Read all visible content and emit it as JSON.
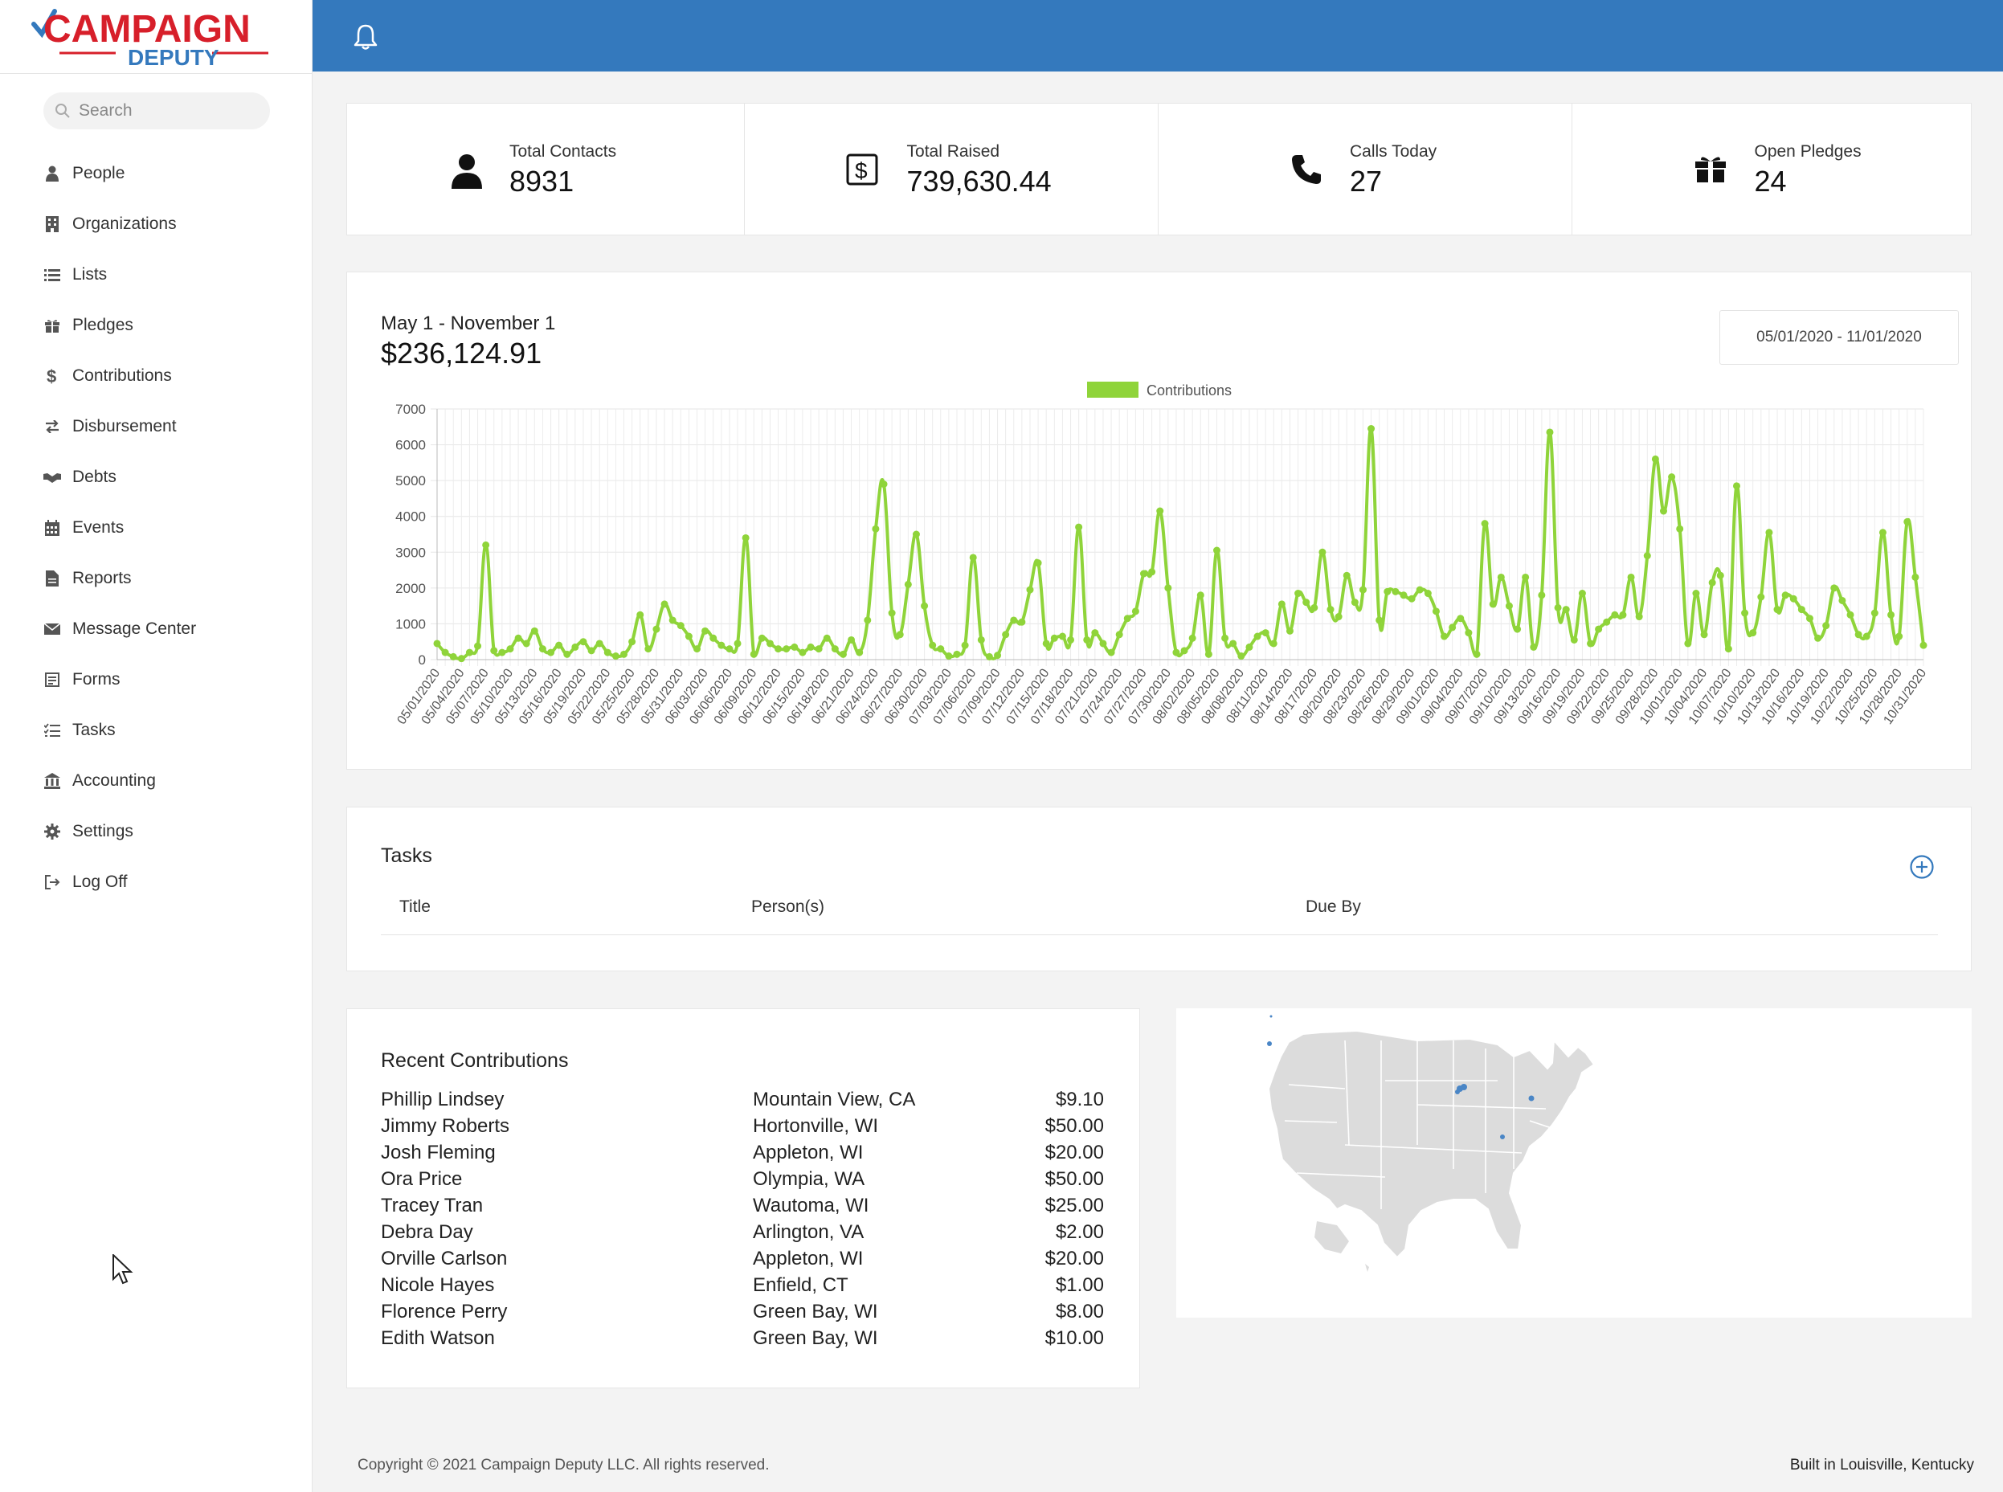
{
  "app": {
    "logo_top": "CAMPAIGN",
    "logo_bottom": "DEPUTY",
    "brand_red": "#d71f2a",
    "brand_blue": "#3479bd"
  },
  "search": {
    "placeholder": "Search"
  },
  "sidebar": {
    "items": [
      {
        "label": "People",
        "icon": "person-icon"
      },
      {
        "label": "Organizations",
        "icon": "building-icon"
      },
      {
        "label": "Lists",
        "icon": "list-icon"
      },
      {
        "label": "Pledges",
        "icon": "gift-icon"
      },
      {
        "label": "Contributions",
        "icon": "dollar-icon"
      },
      {
        "label": "Disbursement",
        "icon": "exchange-icon"
      },
      {
        "label": "Debts",
        "icon": "handshake-icon"
      },
      {
        "label": "Events",
        "icon": "calendar-icon"
      },
      {
        "label": "Reports",
        "icon": "file-icon"
      },
      {
        "label": "Message Center",
        "icon": "envelope-icon"
      },
      {
        "label": "Forms",
        "icon": "form-icon"
      },
      {
        "label": "Tasks",
        "icon": "tasks-icon"
      },
      {
        "label": "Accounting",
        "icon": "bank-icon"
      },
      {
        "label": "Settings",
        "icon": "gear-icon"
      },
      {
        "label": "Log Off",
        "icon": "sign-out-icon"
      }
    ]
  },
  "stats": [
    {
      "label": "Total Contacts",
      "value": "8931",
      "icon": "user-icon"
    },
    {
      "label": "Total Raised",
      "value": "739,630.44",
      "icon": "dollar-box-icon"
    },
    {
      "label": "Calls Today",
      "value": "27",
      "icon": "phone-icon"
    },
    {
      "label": "Open Pledges",
      "value": "24",
      "icon": "gift-icon"
    }
  ],
  "chart_header": {
    "period": "May 1 - November 1",
    "total": "$236,124.91",
    "range": "05/01/2020 - 11/01/2020"
  },
  "chart_data": {
    "type": "line",
    "title": "",
    "xlabel": "",
    "ylabel": "",
    "color": "#8fd43a",
    "ylim": [
      0,
      7000
    ],
    "yticks": [
      0,
      1000,
      2000,
      3000,
      4000,
      5000,
      6000,
      7000
    ],
    "grid": true,
    "legend_position": "top-center",
    "series": [
      {
        "name": "Contributions",
        "x_start": "05/01/2020",
        "values": [
          450,
          200,
          80,
          30,
          200,
          380,
          3200,
          250,
          200,
          300,
          600,
          450,
          800,
          300,
          200,
          400,
          150,
          350,
          500,
          250,
          450,
          200,
          100,
          150,
          500,
          1250,
          300,
          850,
          1550,
          1100,
          950,
          650,
          300,
          800,
          600,
          400,
          300,
          450,
          3400,
          150,
          600,
          450,
          300,
          300,
          350,
          200,
          350,
          300,
          600,
          300,
          150,
          550,
          200,
          1100,
          3650,
          4900,
          1300,
          700,
          2100,
          3500,
          1500,
          400,
          300,
          100,
          150,
          400,
          2850,
          550,
          80,
          120,
          700,
          1100,
          1050,
          1950,
          2700,
          450,
          600,
          650,
          550,
          3700,
          550,
          750,
          450,
          200,
          700,
          1150,
          1350,
          2400,
          2450,
          4150,
          2000,
          200,
          250,
          600,
          1800,
          150,
          3050,
          600,
          450,
          100,
          350,
          650,
          750,
          450,
          1550,
          800,
          1850,
          1600,
          1450,
          3000,
          1400,
          1200,
          2350,
          1600,
          1950,
          6450,
          1100,
          1900,
          1900,
          1800,
          1700,
          1950,
          1850,
          1350,
          650,
          900,
          1150,
          750,
          150,
          3800,
          1550,
          2300,
          1500,
          850,
          2300,
          350,
          1800,
          6350,
          1450,
          1400,
          550,
          1850,
          450,
          850,
          1050,
          1250,
          1250,
          2300,
          1200,
          2900,
          5600,
          4150,
          5100,
          3650,
          450,
          1850,
          700,
          2150,
          2350,
          300,
          4850,
          1300,
          750,
          1750,
          3550,
          1400,
          1800,
          1700,
          1400,
          1150,
          600,
          950,
          2000,
          1650,
          1250,
          700,
          650,
          1300,
          3550,
          1250,
          650,
          3850,
          2300,
          400
        ]
      }
    ],
    "x_tick_labels": [
      "05/01/2020",
      "05/04/2020",
      "05/07/2020",
      "05/10/2020",
      "05/13/2020",
      "05/16/2020",
      "05/19/2020",
      "05/22/2020",
      "05/25/2020",
      "05/28/2020",
      "05/31/2020",
      "06/03/2020",
      "06/06/2020",
      "06/09/2020",
      "06/12/2020",
      "06/15/2020",
      "06/18/2020",
      "06/21/2020",
      "06/24/2020",
      "06/27/2020",
      "06/30/2020",
      "07/03/2020",
      "07/06/2020",
      "07/09/2020",
      "07/12/2020",
      "07/15/2020",
      "07/18/2020",
      "07/21/2020",
      "07/24/2020",
      "07/27/2020",
      "07/30/2020",
      "08/02/2020",
      "08/05/2020",
      "08/08/2020",
      "08/11/2020",
      "08/14/2020",
      "08/17/2020",
      "08/20/2020",
      "08/23/2020",
      "08/26/2020",
      "08/29/2020",
      "09/01/2020",
      "09/04/2020",
      "09/07/2020",
      "09/10/2020",
      "09/13/2020",
      "09/16/2020",
      "09/19/2020",
      "09/22/2020",
      "09/25/2020",
      "09/28/2020",
      "10/01/2020",
      "10/04/2020",
      "10/07/2020",
      "10/10/2020",
      "10/13/2020",
      "10/16/2020",
      "10/19/2020",
      "10/22/2020",
      "10/25/2020",
      "10/28/2020",
      "10/31/2020"
    ]
  },
  "tasks": {
    "title": "Tasks",
    "columns": [
      "Title",
      "Person(s)",
      "Due By"
    ]
  },
  "recent": {
    "title": "Recent Contributions",
    "rows": [
      {
        "name": "Phillip Lindsey",
        "location": "Mountain View, CA",
        "amount": "$9.10"
      },
      {
        "name": "Jimmy Roberts",
        "location": "Hortonville, WI",
        "amount": "$50.00"
      },
      {
        "name": "Josh Fleming",
        "location": "Appleton, WI",
        "amount": "$20.00"
      },
      {
        "name": "Ora Price",
        "location": "Olympia, WA",
        "amount": "$50.00"
      },
      {
        "name": "Tracey Tran",
        "location": "Wautoma, WI",
        "amount": "$25.00"
      },
      {
        "name": "Debra Day",
        "location": "Arlington, VA",
        "amount": "$2.00"
      },
      {
        "name": "Orville Carlson",
        "location": "Appleton, WI",
        "amount": "$20.00"
      },
      {
        "name": "Nicole Hayes",
        "location": "Enfield, CT",
        "amount": "$1.00"
      },
      {
        "name": "Florence Perry",
        "location": "Green Bay, WI",
        "amount": "$8.00"
      },
      {
        "name": "Edith Watson",
        "location": "Green Bay, WI",
        "amount": "$10.00"
      }
    ]
  },
  "footer": {
    "copyright": "Copyright © 2021 Campaign Deputy LLC. All rights reserved.",
    "built": "Built in Louisville, Kentucky"
  }
}
